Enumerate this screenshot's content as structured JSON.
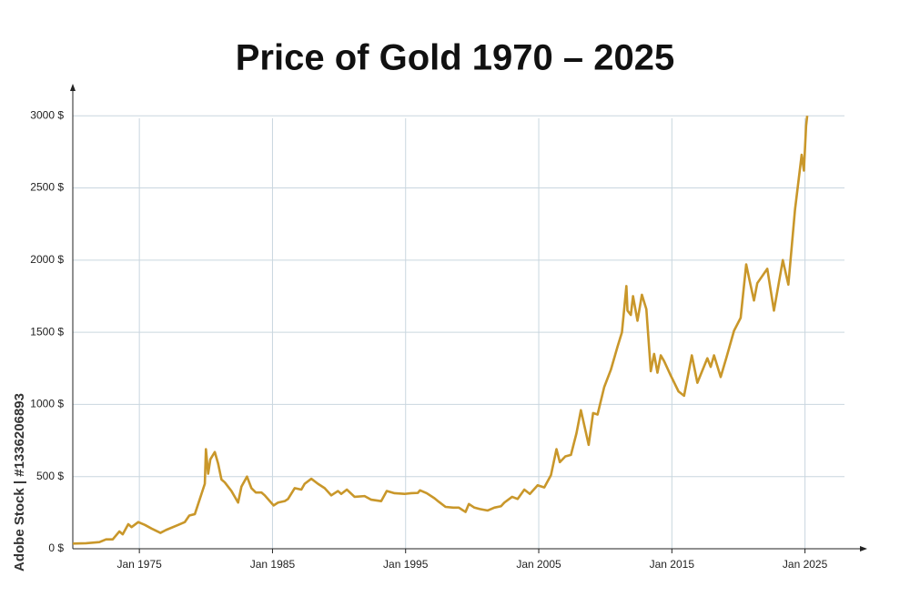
{
  "chart_data": {
    "type": "line",
    "title": "Price of Gold 1970 – 2025",
    "credit": "Adobe Stock | #1336206893",
    "xlim": [
      "1970-01",
      "2028-01"
    ],
    "xticks": [
      {
        "value": "1975-01",
        "label": "Jan 1975"
      },
      {
        "value": "1985-01",
        "label": "Jan 1985"
      },
      {
        "value": "1995-01",
        "label": "Jan 1995"
      },
      {
        "value": "2005-01",
        "label": "Jan 2005"
      },
      {
        "value": "2015-01",
        "label": "Jan 2015"
      },
      {
        "value": "2025-01",
        "label": "Jan 2025"
      }
    ],
    "ylim": [
      0,
      3200
    ],
    "yticks": [
      {
        "value": 0,
        "label": "0 $"
      },
      {
        "value": 500,
        "label": "500 $"
      },
      {
        "value": 1000,
        "label": "1000 $"
      },
      {
        "value": 1500,
        "label": "1500 $"
      },
      {
        "value": 2000,
        "label": "2000 $"
      },
      {
        "value": 2500,
        "label": "2500 $"
      },
      {
        "value": 3000,
        "label": "3000 $"
      }
    ],
    "grid": true,
    "series": [
      {
        "color": "#c9972a",
        "x": [
          "1970-01",
          "1971-01",
          "1972-01",
          "1972-07",
          "1973-01",
          "1973-07",
          "1973-10",
          "1974-03",
          "1974-06",
          "1974-12",
          "1975-06",
          "1975-12",
          "1976-08",
          "1977-01",
          "1977-12",
          "1978-06",
          "1978-10",
          "1979-03",
          "1979-09",
          "1979-12",
          "1980-01",
          "1980-03",
          "1980-05",
          "1980-09",
          "1980-12",
          "1981-03",
          "1981-06",
          "1981-12",
          "1982-06",
          "1982-09",
          "1983-02",
          "1983-06",
          "1983-10",
          "1984-03",
          "1984-06",
          "1985-02",
          "1985-06",
          "1985-12",
          "1986-03",
          "1986-09",
          "1987-03",
          "1987-06",
          "1987-12",
          "1988-06",
          "1988-12",
          "1989-06",
          "1989-12",
          "1990-03",
          "1990-08",
          "1991-03",
          "1991-12",
          "1992-06",
          "1993-03",
          "1993-08",
          "1994-03",
          "1994-12",
          "1995-06",
          "1995-12",
          "1996-02",
          "1996-08",
          "1997-03",
          "1997-07",
          "1998-01",
          "1998-08",
          "1999-01",
          "1999-07",
          "1999-10",
          "2000-03",
          "2000-08",
          "2001-03",
          "2001-09",
          "2002-03",
          "2002-06",
          "2003-01",
          "2003-06",
          "2003-12",
          "2004-05",
          "2004-12",
          "2005-06",
          "2005-12",
          "2006-05",
          "2006-08",
          "2007-01",
          "2007-06",
          "2007-11",
          "2008-03",
          "2008-10",
          "2009-02",
          "2009-06",
          "2009-12",
          "2010-06",
          "2010-12",
          "2011-04",
          "2011-08",
          "2011-09",
          "2011-12",
          "2012-02",
          "2012-06",
          "2012-10",
          "2013-02",
          "2013-06",
          "2013-09",
          "2013-12",
          "2014-03",
          "2014-06",
          "2014-12",
          "2015-07",
          "2015-12",
          "2016-07",
          "2016-12",
          "2017-09",
          "2017-12",
          "2018-03",
          "2018-09",
          "2019-02",
          "2019-09",
          "2020-03",
          "2020-08",
          "2020-11",
          "2021-03",
          "2021-06",
          "2022-03",
          "2022-09",
          "2023-05",
          "2023-10",
          "2024-04",
          "2024-10",
          "2024-12",
          "2025-02",
          "2025-03"
        ],
        "values": [
          36,
          38,
          46,
          65,
          65,
          120,
          100,
          170,
          150,
          185,
          165,
          140,
          110,
          130,
          165,
          185,
          230,
          240,
          380,
          450,
          690,
          520,
          620,
          670,
          590,
          480,
          460,
          400,
          320,
          430,
          500,
          420,
          390,
          390,
          370,
          300,
          320,
          330,
          345,
          420,
          410,
          450,
          485,
          450,
          420,
          370,
          400,
          380,
          410,
          360,
          365,
          340,
          330,
          400,
          385,
          380,
          385,
          387,
          405,
          385,
          350,
          325,
          290,
          285,
          285,
          255,
          310,
          285,
          275,
          265,
          285,
          295,
          320,
          360,
          345,
          410,
          380,
          440,
          425,
          510,
          690,
          600,
          640,
          650,
          800,
          960,
          720,
          940,
          930,
          1120,
          1240,
          1400,
          1500,
          1820,
          1650,
          1620,
          1750,
          1580,
          1760,
          1660,
          1230,
          1350,
          1220,
          1340,
          1300,
          1200,
          1090,
          1060,
          1340,
          1150,
          1320,
          1260,
          1340,
          1190,
          1320,
          1510,
          1600,
          1970,
          1860,
          1720,
          1840,
          1940,
          1650,
          2000,
          1830,
          2350,
          2730,
          2620,
          2930,
          3000
        ]
      }
    ]
  }
}
